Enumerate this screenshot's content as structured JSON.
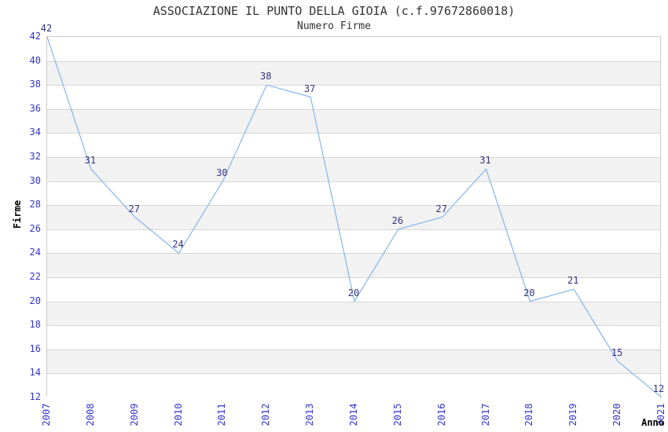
{
  "chart_data": {
    "type": "line",
    "title": "ASSOCIAZIONE IL PUNTO DELLA GIOIA (c.f.97672860018)",
    "subtitle": "Numero Firme",
    "xlabel": "Anno",
    "ylabel": "Firme",
    "categories": [
      "2007",
      "2008",
      "2009",
      "2010",
      "2011",
      "2012",
      "2013",
      "2014",
      "2015",
      "2016",
      "2017",
      "2018",
      "2019",
      "2020",
      "2021"
    ],
    "series": [
      {
        "name": "Numero Firme",
        "values": [
          42,
          31,
          27,
          24,
          30,
          38,
          37,
          20,
          26,
          27,
          31,
          20,
          21,
          15,
          12
        ]
      }
    ],
    "ylim": [
      12,
      42
    ],
    "ytick_step": 2,
    "grid": "horizontal-only",
    "legend": "none",
    "plot_background": "alternating-bands",
    "point_labels_visible": true,
    "colors": {
      "line": "#84B6EA",
      "tick_label": "#3333CC",
      "point_label": "#333380",
      "band": "#F2F2F2",
      "gridline": "#D6D6D6",
      "plot_border": "#CCCCCC",
      "title": "#333333"
    }
  }
}
